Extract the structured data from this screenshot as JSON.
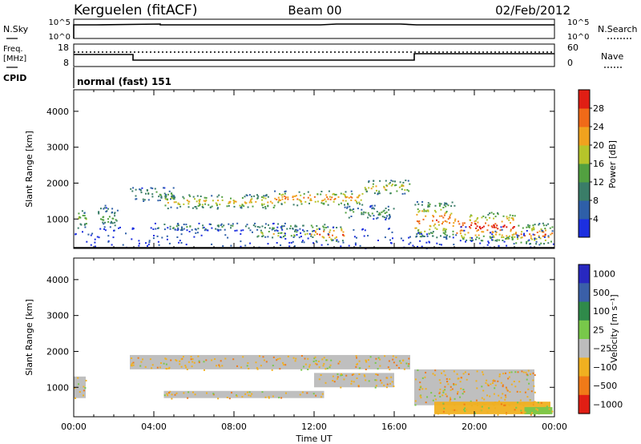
{
  "header": {
    "station": "Kerguelen (fitACF)",
    "beam": "Beam 00",
    "date": "02/Feb/2012"
  },
  "top_panels": {
    "nsky": {
      "label": "N.Sky",
      "ticks": [
        "10^5",
        "10^0"
      ]
    },
    "nsearch": {
      "label": "N.Search",
      "ticks": [
        "10^5",
        "10^0"
      ]
    },
    "freq": {
      "label_line1": "Freq.",
      "label_line2": "[MHz]",
      "ticks": [
        "18",
        "8"
      ]
    },
    "nave": {
      "label": "Nave",
      "ticks": [
        "60",
        "0"
      ]
    },
    "cpid": {
      "label": "CPID",
      "text": "normal (fast) 151"
    }
  },
  "chart_data": [
    {
      "type": "heatmap",
      "name": "power",
      "xlabel": "",
      "ylabel": "Slant Range [km]",
      "xlim": [
        "00:00",
        "24:00"
      ],
      "ylim": [
        180,
        4600
      ],
      "yticks": [
        "1000",
        "2000",
        "3000",
        "4000"
      ],
      "colorbar": {
        "label": "Power [dB]",
        "ticks": [
          "4",
          "8",
          "12",
          "16",
          "20",
          "24",
          "28"
        ],
        "levels": [
          0,
          4,
          8,
          12,
          16,
          20,
          24,
          28,
          32
        ],
        "colors": [
          "#1c2fe0",
          "#2e5fa8",
          "#3a7d68",
          "#52a040",
          "#b6c42a",
          "#f0a21e",
          "#f06a18",
          "#e01e14"
        ]
      },
      "features": [
        {
          "t0": 0.1,
          "t1": 0.6,
          "r0": 700,
          "r1": 1300,
          "level": 16
        },
        {
          "t0": 1.2,
          "t1": 2.2,
          "r0": 700,
          "r1": 1400,
          "level": 12
        },
        {
          "t0": 2.8,
          "t1": 5.0,
          "r0": 1500,
          "r1": 1900,
          "level": 12
        },
        {
          "t0": 4.5,
          "t1": 10.0,
          "r0": 1300,
          "r1": 1700,
          "level": 20
        },
        {
          "t0": 10.0,
          "t1": 14.5,
          "r0": 1400,
          "r1": 1800,
          "level": 24
        },
        {
          "t0": 14.5,
          "t1": 16.8,
          "r0": 1700,
          "r1": 2100,
          "level": 20
        },
        {
          "t0": 4.0,
          "t1": 12.5,
          "r0": 700,
          "r1": 900,
          "level": 12
        },
        {
          "t0": 9.0,
          "t1": 12.0,
          "r0": 500,
          "r1": 700,
          "level": 20
        },
        {
          "t0": 12.0,
          "t1": 13.5,
          "r0": 400,
          "r1": 800,
          "level": 28
        },
        {
          "t0": 13.5,
          "t1": 16.0,
          "r0": 1000,
          "r1": 1400,
          "level": 12
        },
        {
          "t0": 17.0,
          "t1": 19.0,
          "r0": 500,
          "r1": 1500,
          "level": 24
        },
        {
          "t0": 19.0,
          "t1": 22.0,
          "r0": 400,
          "r1": 1200,
          "level": 28
        },
        {
          "t0": 22.0,
          "t1": 23.9,
          "r0": 300,
          "r1": 900,
          "level": 24
        }
      ]
    },
    {
      "type": "heatmap",
      "name": "velocity",
      "xlabel": "Time UT",
      "ylabel": "Slant Range [km]",
      "xlim": [
        "00:00",
        "24:00"
      ],
      "ylim": [
        180,
        4600
      ],
      "xticks": [
        "00:00",
        "04:00",
        "08:00",
        "12:00",
        "16:00",
        "20:00",
        "00:00"
      ],
      "yticks": [
        "1000",
        "2000",
        "3000",
        "4000"
      ],
      "colorbar": {
        "label": "Velocity [m s⁻¹]",
        "ticks": [
          "1000",
          "500",
          "100",
          "25",
          "−25",
          "−100",
          "−500",
          "−1000"
        ],
        "colors": [
          "#2828c0",
          "#3a5fa8",
          "#2f8a4a",
          "#78c84a",
          "#bcbcbc",
          "#f0b020",
          "#f07a18",
          "#e01e14"
        ]
      },
      "features": [
        {
          "t0": 2.8,
          "t1": 16.8,
          "r0": 1500,
          "r1": 1900,
          "level": "25"
        },
        {
          "t0": 4.5,
          "t1": 12.5,
          "r0": 700,
          "r1": 900,
          "level": "25"
        },
        {
          "t0": 12.0,
          "t1": 16.0,
          "r0": 1000,
          "r1": 1400,
          "level": "25"
        },
        {
          "t0": 17.0,
          "t1": 23.0,
          "r0": 500,
          "r1": 1500,
          "level": "25"
        },
        {
          "t0": 0.0,
          "t1": 0.6,
          "r0": 700,
          "r1": 1300,
          "level": "25"
        },
        {
          "t0": 18.0,
          "t1": 23.8,
          "r0": 250,
          "r1": 600,
          "level": "-100"
        },
        {
          "t0": 22.5,
          "t1": 23.9,
          "r0": 250,
          "r1": 450,
          "level": "100"
        }
      ]
    }
  ]
}
